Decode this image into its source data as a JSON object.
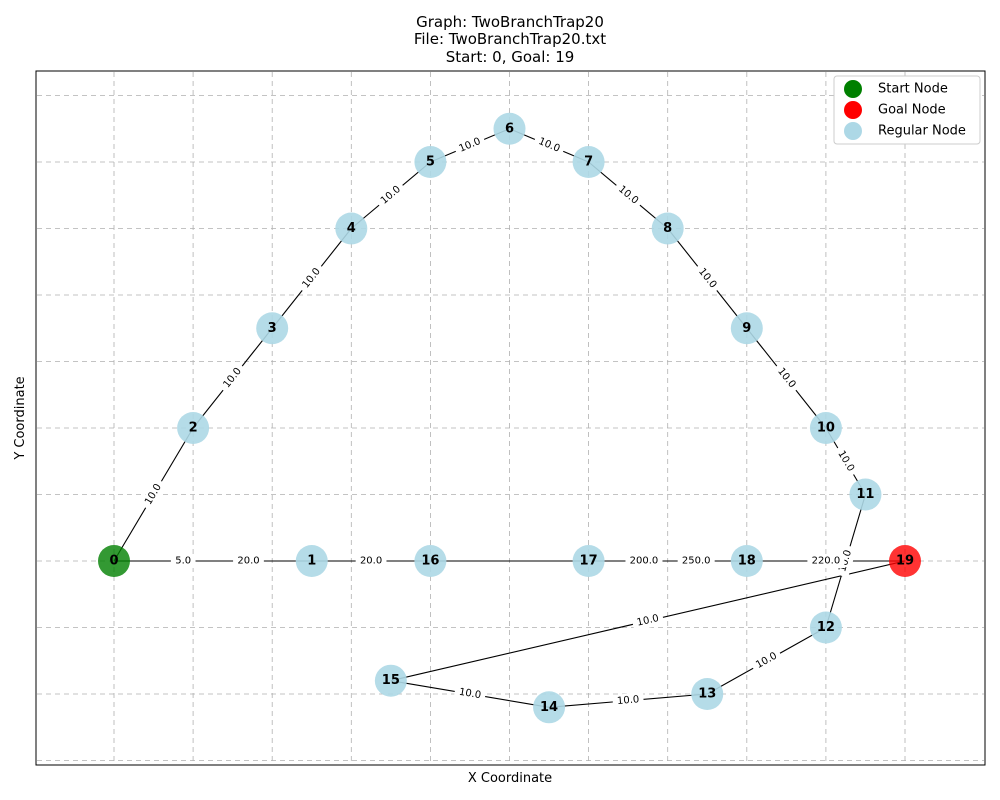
{
  "title": {
    "line1": "Graph: TwoBranchTrap20",
    "line2": "File: TwoBranchTrap20.txt",
    "line3": "Start: 0, Goal: 19"
  },
  "axes": {
    "xlabel": "X Coordinate",
    "ylabel": "Y Coordinate",
    "grid": true
  },
  "legend": {
    "placement": "top-right",
    "items": [
      {
        "label": "Start Node",
        "color": "#008000"
      },
      {
        "label": "Goal Node",
        "color": "#ff0000"
      },
      {
        "label": "Regular Node",
        "color": "#add8e6"
      }
    ]
  },
  "colors": {
    "start": "#008000",
    "goal": "#ff0000",
    "regular": "#add8e6"
  },
  "chart_data": {
    "type": "graph",
    "start": 0,
    "goal": 19,
    "nodes": [
      {
        "id": "0",
        "x": 0,
        "y": 0,
        "role": "start"
      },
      {
        "id": "1",
        "x": 5,
        "y": 0,
        "role": "regular"
      },
      {
        "id": "2",
        "x": 2,
        "y": 2,
        "role": "regular"
      },
      {
        "id": "3",
        "x": 4,
        "y": 3.5,
        "role": "regular"
      },
      {
        "id": "4",
        "x": 6,
        "y": 5,
        "role": "regular"
      },
      {
        "id": "5",
        "x": 8,
        "y": 6,
        "role": "regular"
      },
      {
        "id": "6",
        "x": 10,
        "y": 6.5,
        "role": "regular"
      },
      {
        "id": "7",
        "x": 12,
        "y": 6,
        "role": "regular"
      },
      {
        "id": "8",
        "x": 14,
        "y": 5,
        "role": "regular"
      },
      {
        "id": "9",
        "x": 16,
        "y": 3.5,
        "role": "regular"
      },
      {
        "id": "10",
        "x": 18,
        "y": 2,
        "role": "regular"
      },
      {
        "id": "11",
        "x": 19,
        "y": 1,
        "role": "regular"
      },
      {
        "id": "12",
        "x": 18,
        "y": -1,
        "role": "regular"
      },
      {
        "id": "13",
        "x": 15,
        "y": -2,
        "role": "regular"
      },
      {
        "id": "14",
        "x": 11,
        "y": -2.2,
        "role": "regular"
      },
      {
        "id": "15",
        "x": 7,
        "y": -1.8,
        "role": "regular"
      },
      {
        "id": "16",
        "x": 8,
        "y": 0,
        "role": "regular"
      },
      {
        "id": "17",
        "x": 12,
        "y": 0,
        "role": "regular"
      },
      {
        "id": "18",
        "x": 16,
        "y": 0,
        "role": "regular"
      },
      {
        "id": "19",
        "x": 20,
        "y": 0,
        "role": "goal"
      }
    ],
    "edges": [
      {
        "from": "0",
        "to": "2",
        "label": "10.0"
      },
      {
        "from": "2",
        "to": "3",
        "label": "10.0"
      },
      {
        "from": "3",
        "to": "4",
        "label": "10.0"
      },
      {
        "from": "4",
        "to": "5",
        "label": "10.0"
      },
      {
        "from": "5",
        "to": "6",
        "label": "10.0"
      },
      {
        "from": "6",
        "to": "7",
        "label": "10.0"
      },
      {
        "from": "7",
        "to": "8",
        "label": "10.0"
      },
      {
        "from": "8",
        "to": "9",
        "label": "10.0"
      },
      {
        "from": "9",
        "to": "10",
        "label": "10.0"
      },
      {
        "from": "10",
        "to": "11",
        "label": "10.0"
      },
      {
        "from": "11",
        "to": "12",
        "label": "10.0"
      },
      {
        "from": "12",
        "to": "13",
        "label": "10.0"
      },
      {
        "from": "13",
        "to": "14",
        "label": "10.0"
      },
      {
        "from": "14",
        "to": "15",
        "label": "10.0"
      },
      {
        "from": "15",
        "to": "19",
        "label": "10.0"
      },
      {
        "from": "0",
        "to": "1",
        "label": "5.0"
      },
      {
        "from": "0",
        "to": "1",
        "label": "20.0"
      },
      {
        "from": "1",
        "to": "16",
        "label": "20.0"
      },
      {
        "from": "16",
        "to": "17",
        "label": ""
      },
      {
        "from": "17",
        "to": "18",
        "label": "200.0"
      },
      {
        "from": "17",
        "to": "18",
        "label": "250.0"
      },
      {
        "from": "18",
        "to": "19",
        "label": "220.0"
      }
    ]
  }
}
